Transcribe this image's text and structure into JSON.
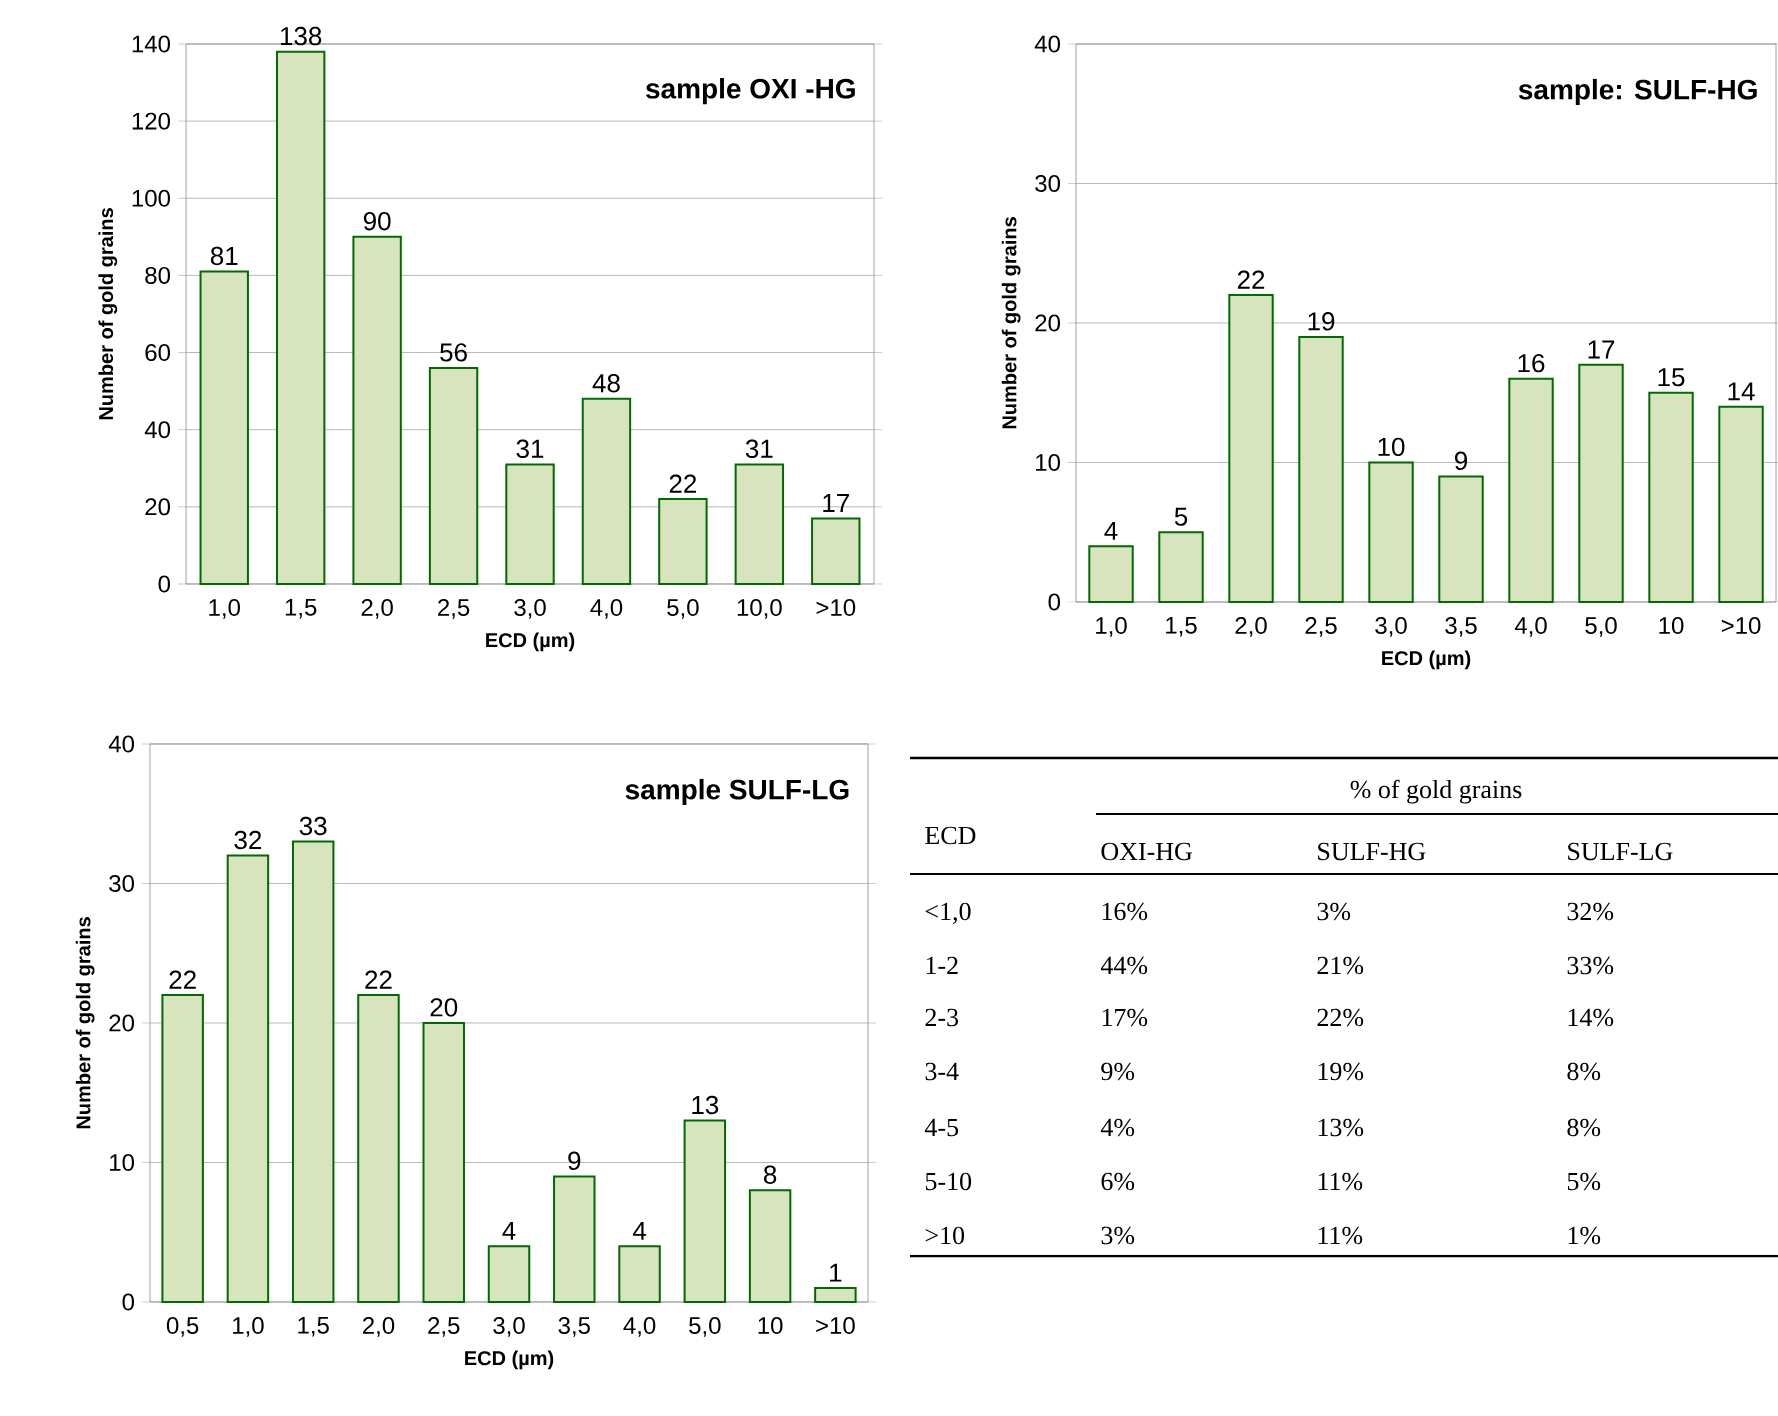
{
  "chart_data": [
    {
      "type": "bar",
      "title": "sample OXI -HG",
      "xlabel": "ECD (µm)",
      "ylabel": "Number of gold grains",
      "categories": [
        "1,0",
        "1,5",
        "2,0",
        "2,5",
        "3,0",
        "4,0",
        "5,0",
        "10,0",
        ">10"
      ],
      "values": [
        81,
        138,
        90,
        56,
        31,
        48,
        22,
        31,
        17
      ],
      "color": "#d7e4bd",
      "ylim": [
        0,
        140
      ],
      "yticks": [
        0,
        20,
        40,
        60,
        80,
        100,
        120,
        140
      ],
      "grid": "y",
      "data_labels": true
    },
    {
      "type": "bar",
      "title": "sample: SULF-HG",
      "xlabel": "ECD (µm)",
      "ylabel": "Number of gold grains",
      "categories": [
        "1,0",
        "1,5",
        "2,0",
        "2,5",
        "3,0",
        "3,5",
        "4,0",
        "5,0",
        "10",
        ">10"
      ],
      "values": [
        4,
        5,
        22,
        19,
        10,
        9,
        16,
        17,
        15,
        14
      ],
      "color": "#d7e4bd",
      "ylim": [
        0,
        40
      ],
      "yticks": [
        0,
        10,
        20,
        30,
        40
      ],
      "grid": "y",
      "data_labels": true
    },
    {
      "type": "bar",
      "title": "sample SULF-LG",
      "xlabel": "ECD (µm)",
      "ylabel": "Number of gold grains",
      "categories": [
        "0,5",
        "1,0",
        "1,5",
        "2,0",
        "2,5",
        "3,0",
        "3,5",
        "4,0",
        "5,0",
        "10",
        ">10"
      ],
      "values": [
        22,
        32,
        33,
        22,
        20,
        4,
        9,
        4,
        13,
        8,
        1
      ],
      "color": "#d7e4bd",
      "ylim": [
        0,
        40
      ],
      "yticks": [
        0,
        10,
        20,
        30,
        40
      ],
      "grid": "y",
      "data_labels": true
    },
    {
      "type": "other",
      "title": "% of gold grains",
      "annotations": [
        "ECD"
      ],
      "categories": [
        "OXI-HG",
        "SULF-HG",
        "SULF-LG"
      ],
      "y_categories": [
        "<1,0",
        "1-2",
        "2-3",
        "3-4",
        "4-5",
        "5-10",
        ">10"
      ],
      "cell_labels": [
        [
          "16%",
          "3%",
          "32%"
        ],
        [
          "44%",
          "21%",
          "33%"
        ],
        [
          "17%",
          "22%",
          "14%"
        ],
        [
          "9%",
          "19%",
          "8%"
        ],
        [
          "4%",
          "13%",
          "8%"
        ],
        [
          "6%",
          "11%",
          "5%"
        ],
        [
          "3%",
          "11%",
          "1%"
        ]
      ]
    }
  ]
}
